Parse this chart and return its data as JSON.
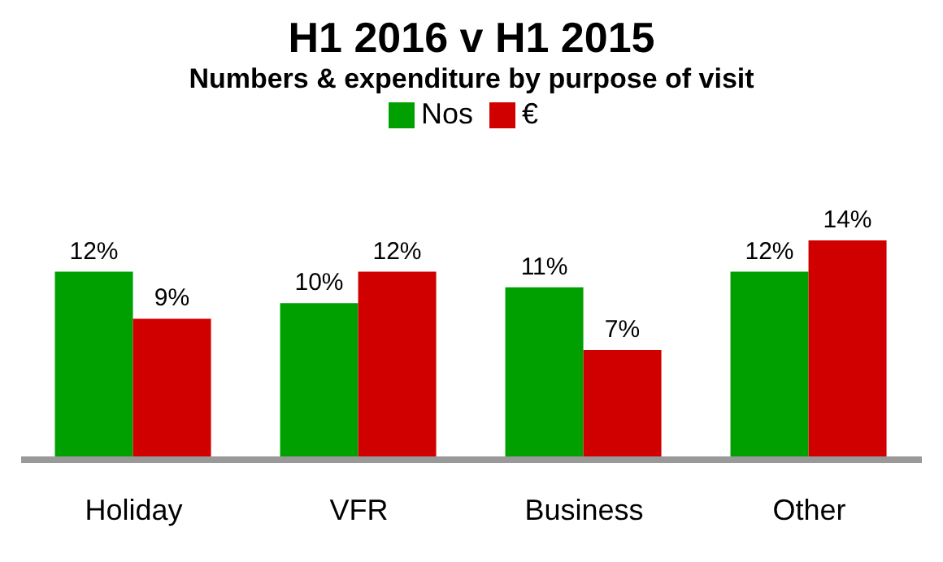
{
  "chart_data": {
    "type": "bar",
    "title": "H1 2016 v H1 2015",
    "subtitle": "Numbers & expenditure by purpose of visit",
    "categories": [
      "Holiday",
      "VFR",
      "Business",
      "Other"
    ],
    "series": [
      {
        "name": "Nos",
        "color": "#00a000",
        "values": [
          12,
          10,
          11,
          12
        ],
        "value_labels": [
          "12%",
          "10%",
          "11%",
          "12%"
        ]
      },
      {
        "name": "€",
        "color": "#d00000",
        "values": [
          9,
          12,
          7,
          14
        ],
        "value_labels": [
          "9%",
          "12%",
          "7%",
          "14%"
        ]
      }
    ],
    "legend": "top",
    "grid": false
  }
}
